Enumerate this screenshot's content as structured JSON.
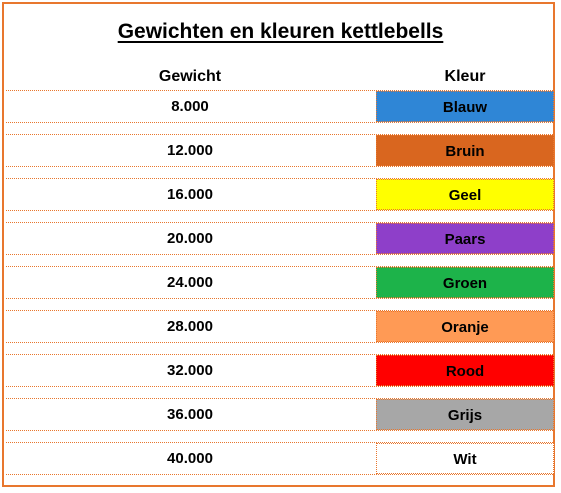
{
  "title": "Gewichten en kleuren kettlebells",
  "headers": {
    "weight": "Gewicht",
    "color": "Kleur"
  },
  "rows": [
    {
      "weight": "8.000",
      "color_name": "Blauw",
      "color": "#2f86d6"
    },
    {
      "weight": "12.000",
      "color_name": "Bruin",
      "color": "#d9661f"
    },
    {
      "weight": "16.000",
      "color_name": "Geel",
      "color": "#ffff00"
    },
    {
      "weight": "20.000",
      "color_name": "Paars",
      "color": "#8e3fc9"
    },
    {
      "weight": "24.000",
      "color_name": "Groen",
      "color": "#1db34a"
    },
    {
      "weight": "28.000",
      "color_name": "Oranje",
      "color": "#ff9a55"
    },
    {
      "weight": "32.000",
      "color_name": "Rood",
      "color": "#ff0000"
    },
    {
      "weight": "36.000",
      "color_name": "Grijs",
      "color": "#a7a7a7"
    },
    {
      "weight": "40.000",
      "color_name": "Wit",
      "color": "#ffffff"
    }
  ],
  "theme": {
    "border": "#e8772e"
  }
}
